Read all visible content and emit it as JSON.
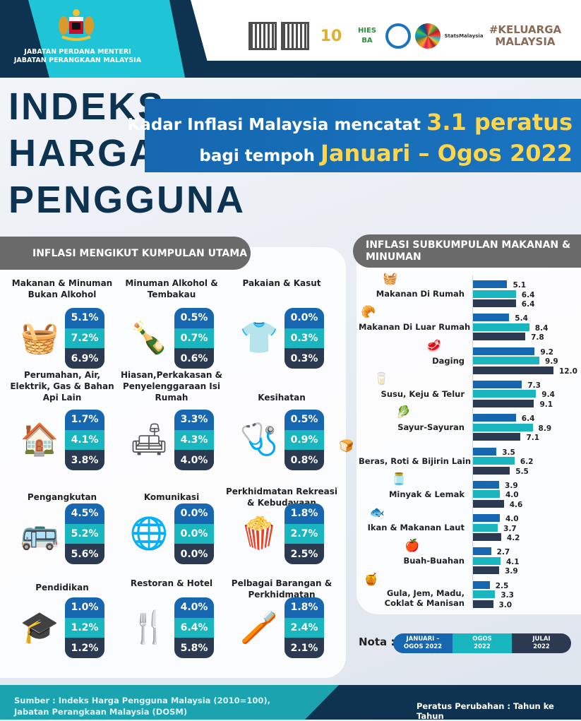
{
  "header": {
    "agency_line1": "JABATAN PERDANA MENTERI",
    "agency_line2": "JABATAN PERANGKAAN MALAYSIA",
    "logos": [
      "qr-code",
      "qr-code-facebook",
      "10 ISM",
      "HIES BA 2022",
      "DOSM",
      "SDG",
      "StatsMalaysia www.dosm.gov.my",
      "#KELUARGA MALAYSIA"
    ]
  },
  "title": {
    "line1": "INDEKS",
    "line2": "HARGA",
    "line3": "PENGGUNA"
  },
  "banner": {
    "text1": "Kadar Inflasi Malaysia mencatat",
    "highlight1": "3.1 peratus",
    "text2": "bagi tempoh",
    "highlight2": "Januari – Ogos 2022"
  },
  "main_groups": {
    "heading": "INFLASI MENGIKUT KUMPULAN UTAMA",
    "items": [
      {
        "name": "Makanan & Minuman Bukan Alkohol",
        "icon": "groceries-icon",
        "values": [
          "5.1%",
          "7.2%",
          "6.9%"
        ]
      },
      {
        "name": "Minuman Alkohol & Tembakau",
        "icon": "bottles-icon",
        "values": [
          "0.5%",
          "0.7%",
          "0.6%"
        ]
      },
      {
        "name": "Pakaian & Kasut",
        "icon": "clothing-icon",
        "values": [
          "0.0%",
          "0.3%",
          "0.3%"
        ]
      },
      {
        "name": "Perumahan, Air, Elektrik, Gas & Bahan Api Lain",
        "icon": "house-icon",
        "values": [
          "1.7%",
          "4.1%",
          "3.8%"
        ]
      },
      {
        "name": "Hiasan,Perkakasan & Penyelenggaraan Isi Rumah",
        "icon": "furniture-icon",
        "values": [
          "3.3%",
          "4.3%",
          "4.0%"
        ]
      },
      {
        "name": "Kesihatan",
        "icon": "health-icon",
        "values": [
          "0.5%",
          "0.9%",
          "0.8%"
        ]
      },
      {
        "name": "Pengangkutan",
        "icon": "vehicle-icon",
        "values": [
          "4.5%",
          "5.2%",
          "5.6%"
        ]
      },
      {
        "name": "Komunikasi",
        "icon": "communication-icon",
        "values": [
          "0.0%",
          "0.0%",
          "0.0%"
        ]
      },
      {
        "name": "Perkhidmatan Rekreasi & Kebudayaan",
        "icon": "recreation-icon",
        "values": [
          "1.8%",
          "2.7%",
          "2.5%"
        ]
      },
      {
        "name": "Pendidikan",
        "icon": "education-icon",
        "values": [
          "1.0%",
          "1.2%",
          "1.2%"
        ]
      },
      {
        "name": "Restoran & Hotel",
        "icon": "restaurant-icon",
        "values": [
          "4.0%",
          "6.4%",
          "5.8%"
        ]
      },
      {
        "name": "Pelbagai Barangan & Perkhidmatan",
        "icon": "toiletries-icon",
        "values": [
          "1.8%",
          "2.4%",
          "2.1%"
        ]
      }
    ]
  },
  "chart_data": {
    "type": "bar",
    "orientation": "horizontal",
    "title": "INFLASI SUBKUMPULAN MAKANAN & MINUMAN",
    "categories": [
      "Makanan Di Rumah",
      "Makanan Di Luar Rumah",
      "Daging",
      "Susu, Keju & Telur",
      "Sayur-Sayuran",
      "Beras, Roti & Bijirin Lain",
      "Minyak & Lemak",
      "Ikan & Makanan Laut",
      "Buah-Buahan",
      "Gula, Jem, Madu, Coklat & Manisan"
    ],
    "category_icons": [
      "basket-icon",
      "food-plate-icon",
      "meat-icon",
      "milk-egg-icon",
      "vegetables-icon",
      "bread-icon",
      "oil-bottle-icon",
      "fish-icon",
      "fruit-icon",
      "jam-sweets-icon"
    ],
    "series": [
      {
        "name": "JANUARI – OGOS 2022",
        "color": "#1767b0",
        "values": [
          5.1,
          5.4,
          9.2,
          7.3,
          6.4,
          3.5,
          3.9,
          4.0,
          2.7,
          2.5
        ]
      },
      {
        "name": "OGOS 2022",
        "color": "#19b6bf",
        "values": [
          6.4,
          8.4,
          9.9,
          9.4,
          8.9,
          6.2,
          4.0,
          3.7,
          4.1,
          3.3
        ]
      },
      {
        "name": "JULAI 2022",
        "color": "#2b3a50",
        "values": [
          6.4,
          7.8,
          12.0,
          9.1,
          7.1,
          5.5,
          4.6,
          4.2,
          3.9,
          3.0
        ]
      }
    ],
    "value_labels": true,
    "xlim": [
      0,
      12.0
    ],
    "grid": false,
    "legend_placement": "bottom"
  },
  "legend": {
    "label": "Nota :",
    "items": [
      {
        "line1": "JANUARI –",
        "line2": "OGOS 2022"
      },
      {
        "line1": "OGOS",
        "line2": "2022"
      },
      {
        "line1": "JULAI",
        "line2": "2022"
      }
    ]
  },
  "footer": {
    "source_line1": "Sumber : Indeks Harga Pengguna Malaysia (2010=100),",
    "source_line2": "Jabatan Perangkaan Malaysia (DOSM)",
    "note": "Peratus Perubahan : Tahun ke Tahun"
  },
  "colors": {
    "navy": "#0d3350",
    "blue": "#1767b0",
    "teal": "#19b6bf",
    "dark": "#2b3a50",
    "highlight": "#ffd54a",
    "cyan": "#1fc5d6"
  }
}
